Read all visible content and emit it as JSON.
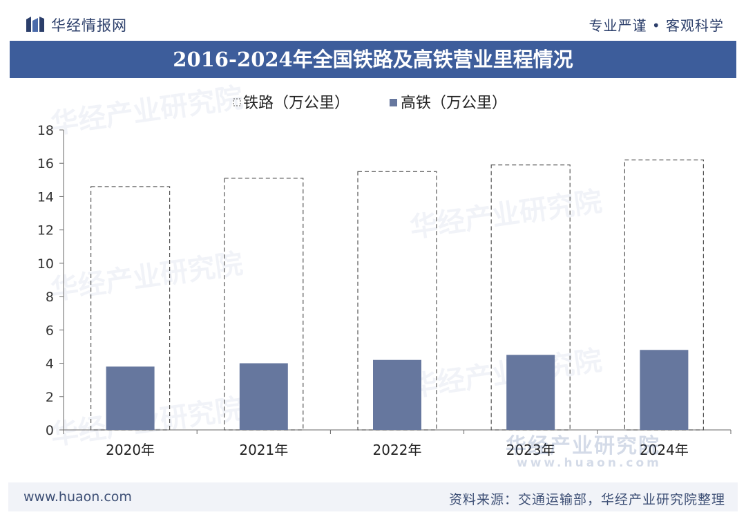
{
  "header": {
    "brand_name": "华经情报网",
    "slogan": "专业严谨 • 客观科学",
    "title": "2016-2024年全国铁路及高铁营业里程情况"
  },
  "footer": {
    "url": "www.huaon.com",
    "source": "资料来源：交通运输部，华经产业研究院整理"
  },
  "watermark": {
    "text_cn": "华经产业研究院",
    "text_url": "www.huaon.com"
  },
  "colors": {
    "title_band": "#3d5d9b",
    "hsr_bar": "#66779e",
    "rail_bar_border": "#555555",
    "axis": "#666666"
  },
  "chart_data": {
    "type": "bar",
    "categories": [
      "2020年",
      "2021年",
      "2022年",
      "2023年",
      "2024年"
    ],
    "series": [
      {
        "name": "铁路（万公里）",
        "values": [
          14.6,
          15.1,
          15.5,
          15.9,
          16.2
        ],
        "style": "dashed-outline"
      },
      {
        "name": "高铁（万公里）",
        "values": [
          3.8,
          4.0,
          4.2,
          4.5,
          4.8
        ],
        "style": "solid"
      }
    ],
    "ylim": [
      0,
      18
    ],
    "yticks": [
      0,
      2,
      4,
      6,
      8,
      10,
      12,
      14,
      16,
      18
    ],
    "legend_position": "top",
    "grid": false
  }
}
